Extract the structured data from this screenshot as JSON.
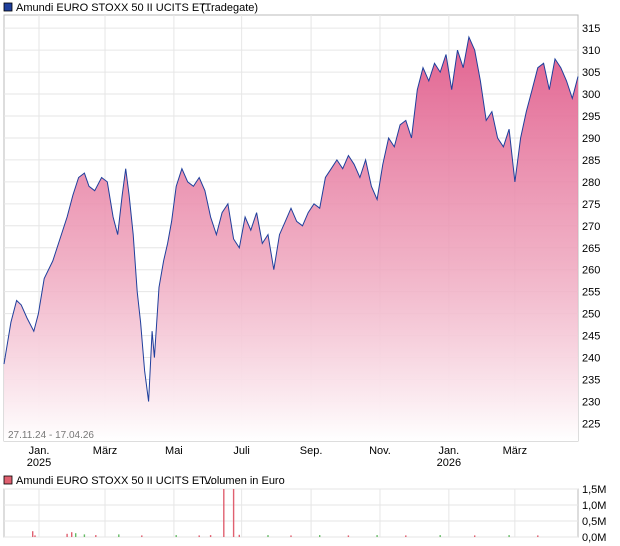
{
  "legend_top": {
    "instrument": "Amundi EURO STOXX 50 II UCITS ET...",
    "exchange": "(Tradegate)",
    "color": "#1f3f9c"
  },
  "legend_bottom": {
    "instrument": "Amundi EURO STOXX 50 II UCITS ET...",
    "unit": "Volumen in Euro",
    "color": "#e06070"
  },
  "date_range": "27.11.24 - 17.04.26",
  "watermark": "",
  "chart_data": [
    {
      "type": "area",
      "title": "Amundi EURO STOXX 50 II UCITS ET... (Tradegate)",
      "ylim": [
        221,
        318
      ],
      "yticks": [
        225,
        230,
        235,
        240,
        245,
        250,
        255,
        260,
        265,
        270,
        275,
        280,
        285,
        290,
        295,
        300,
        305,
        310,
        315
      ],
      "xticks": [
        {
          "label": "Jan.",
          "sub": "2025",
          "t": 0.061
        },
        {
          "label": "März",
          "sub": "",
          "t": 0.176
        },
        {
          "label": "Mai",
          "sub": "",
          "t": 0.296
        },
        {
          "label": "Juli",
          "sub": "",
          "t": 0.414
        },
        {
          "label": "Sep.",
          "sub": "",
          "t": 0.535
        },
        {
          "label": "Nov.",
          "sub": "",
          "t": 0.655
        },
        {
          "label": "Jan.",
          "sub": "2026",
          "t": 0.775
        },
        {
          "label": "März",
          "sub": "",
          "t": 0.89
        }
      ],
      "x": [
        0.0,
        0.012,
        0.022,
        0.03,
        0.04,
        0.052,
        0.06,
        0.07,
        0.085,
        0.095,
        0.11,
        0.12,
        0.13,
        0.14,
        0.148,
        0.158,
        0.17,
        0.18,
        0.19,
        0.198,
        0.206,
        0.212,
        0.218,
        0.225,
        0.232,
        0.238,
        0.245,
        0.252,
        0.258,
        0.262,
        0.27,
        0.278,
        0.285,
        0.292,
        0.3,
        0.31,
        0.32,
        0.33,
        0.34,
        0.35,
        0.36,
        0.37,
        0.38,
        0.39,
        0.4,
        0.41,
        0.42,
        0.43,
        0.44,
        0.45,
        0.46,
        0.47,
        0.48,
        0.49,
        0.5,
        0.51,
        0.52,
        0.53,
        0.54,
        0.55,
        0.56,
        0.57,
        0.58,
        0.59,
        0.6,
        0.61,
        0.62,
        0.63,
        0.64,
        0.65,
        0.66,
        0.67,
        0.68,
        0.69,
        0.7,
        0.71,
        0.72,
        0.73,
        0.74,
        0.75,
        0.76,
        0.77,
        0.78,
        0.79,
        0.8,
        0.81,
        0.82,
        0.83,
        0.84,
        0.85,
        0.86,
        0.87,
        0.88,
        0.89,
        0.9,
        0.91,
        0.92,
        0.93,
        0.94,
        0.95,
        0.96,
        0.97,
        0.98,
        0.99,
        1.0
      ],
      "series": [
        {
          "name": "",
          "color": "#1f3f9c",
          "values": [
            238.5,
            248,
            253,
            252,
            249,
            246,
            250,
            258,
            262,
            266,
            272,
            277,
            281,
            282,
            279,
            278,
            281,
            280,
            272,
            268,
            277,
            283,
            277,
            268,
            255,
            248,
            237,
            230,
            246,
            240,
            256,
            262,
            266,
            271,
            279,
            283,
            280,
            279,
            281,
            278,
            272,
            268,
            273,
            275,
            267,
            265,
            272,
            269,
            273,
            266,
            268,
            260,
            268,
            271,
            274,
            271,
            270,
            273,
            275,
            274,
            281,
            283,
            285,
            283,
            286,
            284,
            281,
            285,
            279,
            276,
            284,
            290,
            288,
            293,
            294,
            290,
            301,
            306,
            303,
            307,
            305,
            309,
            301,
            310,
            306,
            313,
            310,
            303,
            294,
            296,
            290,
            288,
            292,
            280,
            290,
            296,
            301,
            306,
            307,
            301,
            308,
            306,
            303,
            299,
            304
          ]
        }
      ]
    },
    {
      "type": "bar",
      "title": "Amundi EURO STOXX 50 II UCITS ET... Volumen in Euro",
      "ylim": [
        0,
        1.5
      ],
      "yticks": [
        {
          "v": 0,
          "label": "0,0M"
        },
        {
          "v": 0.5,
          "label": "0,5M"
        },
        {
          "v": 1.0,
          "label": "1,0M"
        },
        {
          "v": 1.5,
          "label": "1,5M"
        }
      ],
      "bars": [
        {
          "t": 0.05,
          "v": 0.18,
          "c": "#e06070"
        },
        {
          "t": 0.054,
          "v": 0.05,
          "c": "#e06070"
        },
        {
          "t": 0.11,
          "v": 0.1,
          "c": "#e06070"
        },
        {
          "t": 0.118,
          "v": 0.15,
          "c": "#e06070"
        },
        {
          "t": 0.125,
          "v": 0.12,
          "c": "#66bb66"
        },
        {
          "t": 0.14,
          "v": 0.08,
          "c": "#66bb66"
        },
        {
          "t": 0.16,
          "v": 0.06,
          "c": "#e06070"
        },
        {
          "t": 0.2,
          "v": 0.08,
          "c": "#66bb66"
        },
        {
          "t": 0.24,
          "v": 0.05,
          "c": "#e06070"
        },
        {
          "t": 0.3,
          "v": 0.06,
          "c": "#66bb66"
        },
        {
          "t": 0.34,
          "v": 0.05,
          "c": "#e06070"
        },
        {
          "t": 0.36,
          "v": 0.06,
          "c": "#e06070"
        },
        {
          "t": 0.383,
          "v": 1.55,
          "c": "#e06070"
        },
        {
          "t": 0.4,
          "v": 1.5,
          "c": "#e06070"
        },
        {
          "t": 0.41,
          "v": 0.07,
          "c": "#e06070"
        },
        {
          "t": 0.46,
          "v": 0.06,
          "c": "#66bb66"
        },
        {
          "t": 0.5,
          "v": 0.05,
          "c": "#e06070"
        },
        {
          "t": 0.55,
          "v": 0.06,
          "c": "#66bb66"
        },
        {
          "t": 0.6,
          "v": 0.05,
          "c": "#e06070"
        },
        {
          "t": 0.65,
          "v": 0.06,
          "c": "#66bb66"
        },
        {
          "t": 0.7,
          "v": 0.05,
          "c": "#e06070"
        },
        {
          "t": 0.76,
          "v": 0.06,
          "c": "#66bb66"
        },
        {
          "t": 0.82,
          "v": 0.05,
          "c": "#e06070"
        },
        {
          "t": 0.88,
          "v": 0.06,
          "c": "#66bb66"
        },
        {
          "t": 0.93,
          "v": 0.05,
          "c": "#e06070"
        }
      ]
    }
  ]
}
